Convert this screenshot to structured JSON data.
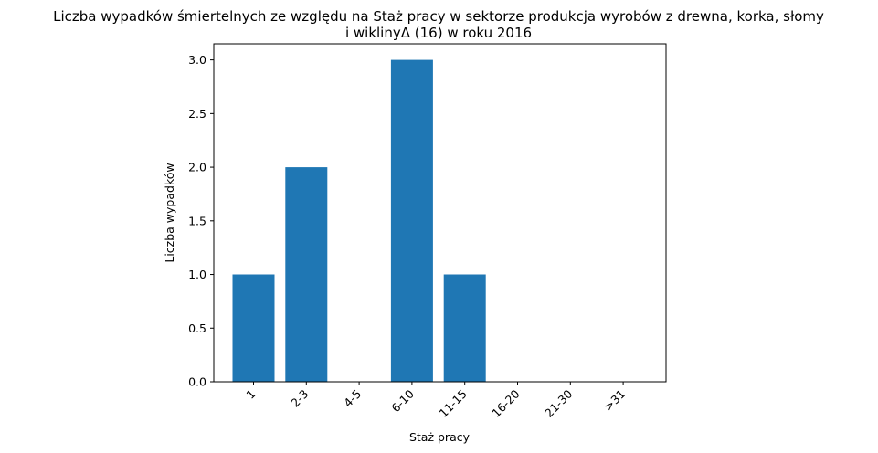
{
  "chart_data": {
    "type": "bar",
    "title_line1": "Liczba wypadków śmiertelnych ze względu na Staż pracy w sektorze produkcja wyrobów z drewna, korka, słomy",
    "title_line2": "i wiklinyΔ (16)  w roku 2016",
    "xlabel": "Staż pracy",
    "ylabel": "Liczba wypadków",
    "categories": [
      "1",
      "2-3",
      "4-5",
      "6-10",
      "11-15",
      "16-20",
      "21-30",
      ">31"
    ],
    "values": [
      1,
      2,
      0,
      3,
      1,
      0,
      0,
      0
    ],
    "ylim": [
      0,
      3.15
    ],
    "yticks": [
      "0.0",
      "0.5",
      "1.0",
      "1.5",
      "2.0",
      "2.5",
      "3.0"
    ],
    "bar_color": "#1f77b4",
    "grid": false
  }
}
